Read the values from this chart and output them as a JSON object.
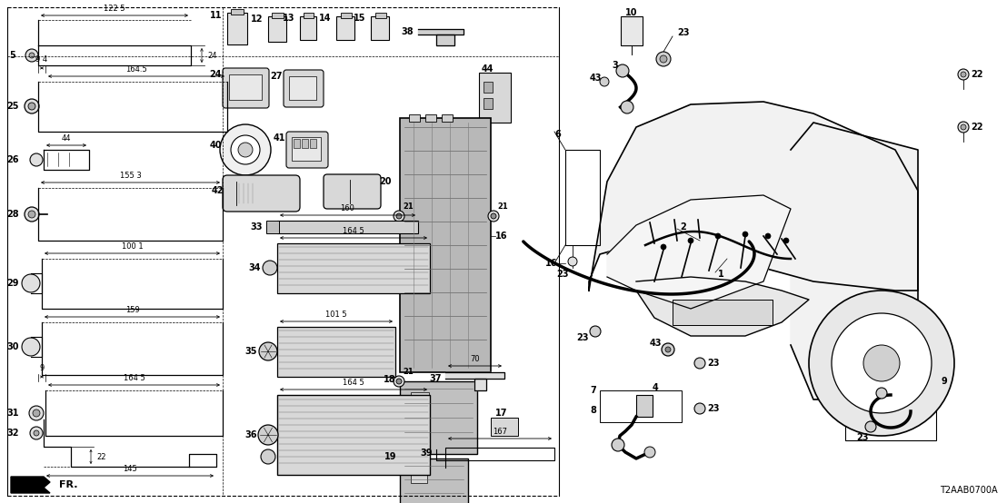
{
  "bg_color": "#ffffff",
  "diagram_code": "T2AAB0700A",
  "fig_w": 11.08,
  "fig_h": 5.54,
  "dpi": 100
}
